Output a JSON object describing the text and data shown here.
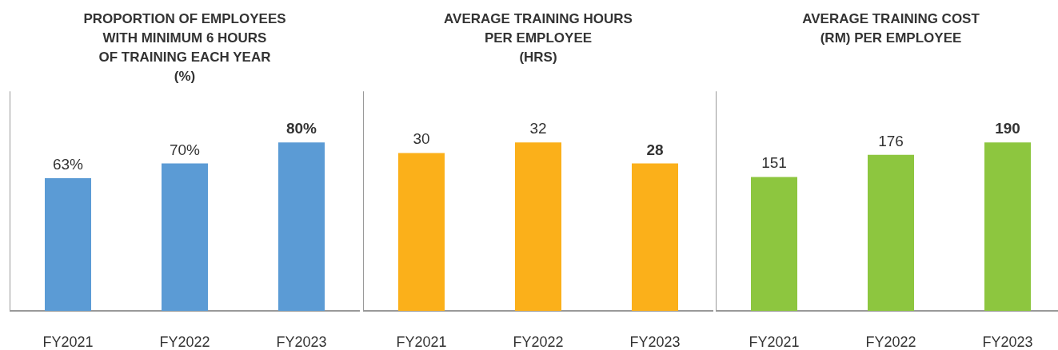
{
  "chart_data": [
    {
      "type": "bar",
      "title": "PROPORTION OF EMPLOYEES\nWITH MINIMUM 6 HOURS\nOF TRAINING EACH YEAR\n(%)",
      "categories": [
        "FY2021",
        "FY2022",
        "FY2023"
      ],
      "values": [
        63,
        70,
        80
      ],
      "value_labels": [
        "63%",
        "70%",
        "80%"
      ],
      "color": "#5b9bd5",
      "grid": false,
      "tick_labels": "x"
    },
    {
      "type": "bar",
      "title": "AVERAGE TRAINING HOURS\nPER EMPLOYEE\n(HRS)",
      "categories": [
        "FY2021",
        "FY2022",
        "FY2023"
      ],
      "values": [
        30,
        32,
        28
      ],
      "data_labels": true,
      "color": "#fbb01a",
      "grid": false,
      "tick_labels": "x"
    },
    {
      "type": "bar",
      "title": "AVERAGE TRAINING COST\n(RM) PER EMPLOYEE",
      "categories": [
        "FY2021",
        "FY2022",
        "FY2023"
      ],
      "values": [
        151,
        176,
        190
      ],
      "data_labels": true,
      "color": "#8dc63f",
      "grid": false,
      "tick_labels": "x"
    }
  ]
}
